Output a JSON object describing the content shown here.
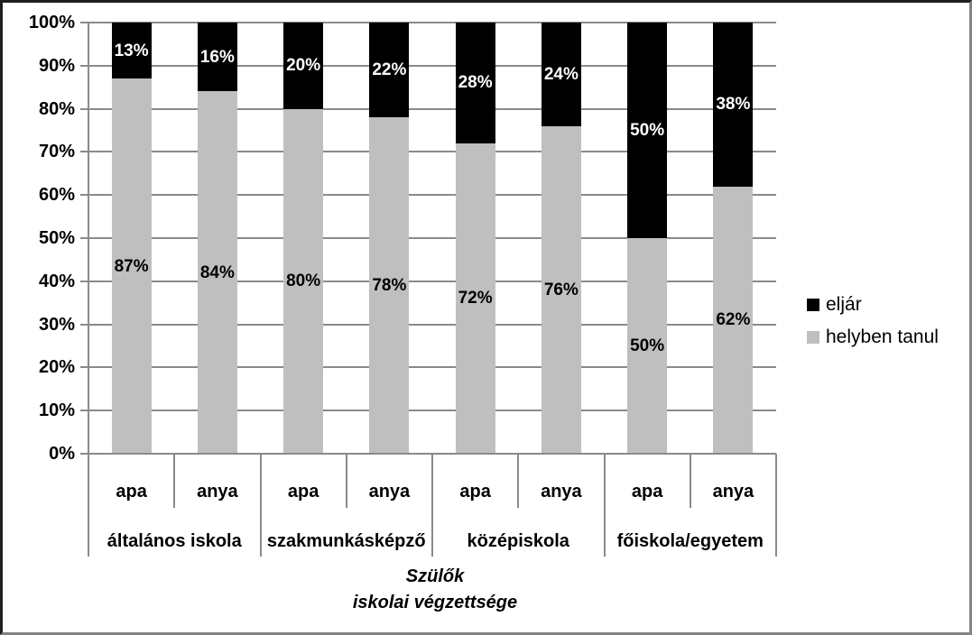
{
  "chart_data": {
    "type": "bar",
    "variant": "stacked-percent-column",
    "title": "",
    "xlabel_lines": [
      "Szülők",
      "iskolai végzettsége"
    ],
    "ylabel": "",
    "ylim": [
      0,
      100
    ],
    "grid": true,
    "y_tick_labels": [
      "100%",
      "90%",
      "80%",
      "70%",
      "60%",
      "50%",
      "40%",
      "30%",
      "20%",
      "10%",
      "0%"
    ],
    "categories": [
      "apa",
      "anya",
      "apa",
      "anya",
      "apa",
      "anya",
      "apa",
      "anya"
    ],
    "group_labels": [
      "általános iskola",
      "szakmunkásképző",
      "középiskola",
      "főiskola/egyetem"
    ],
    "series": [
      {
        "name": "eljár",
        "color": "#000000",
        "values": [
          13,
          16,
          20,
          22,
          28,
          24,
          50,
          38
        ]
      },
      {
        "name": "helyben tanul",
        "color": "#bfbfbf",
        "values": [
          87,
          84,
          80,
          78,
          72,
          76,
          50,
          62
        ]
      }
    ],
    "data_label_suffix": "%",
    "legend": {
      "position": "right",
      "items": [
        {
          "label": "eljár",
          "color": "#000000"
        },
        {
          "label": "helyben tanul",
          "color": "#bfbfbf"
        }
      ]
    },
    "colors": {
      "bar_black": "#000000",
      "bar_gray": "#bfbfbf",
      "gridline": "#8a8a8a",
      "label_on_black": "#ffffff",
      "label_on_gray": "#000000"
    }
  }
}
